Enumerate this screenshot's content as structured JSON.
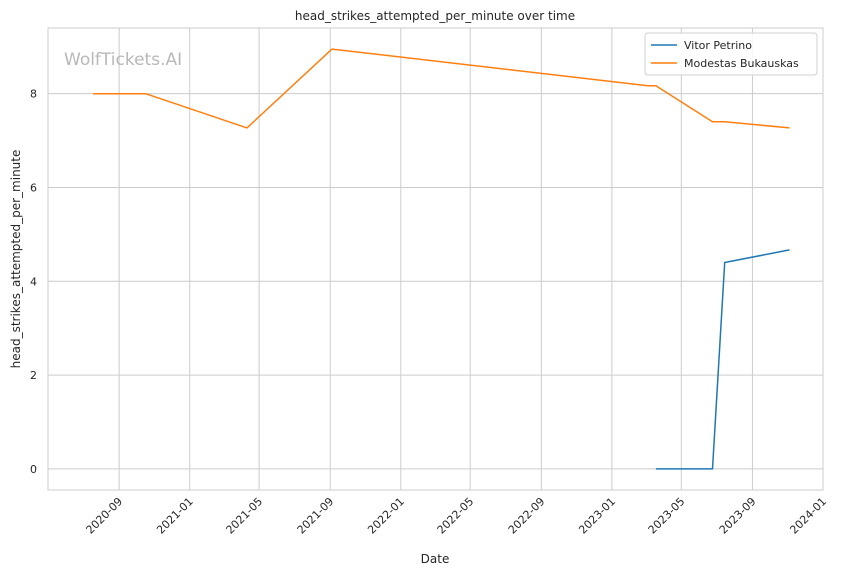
{
  "chart_data": {
    "type": "line",
    "title": "head_strikes_attempted_per_minute over time",
    "xlabel": "Date",
    "ylabel": "head_strikes_attempted_per_minute",
    "watermark": "WolfTickets.AI",
    "x_tick_labels": [
      "2020-09",
      "2021-01",
      "2021-05",
      "2021-09",
      "2022-01",
      "2022-05",
      "2022-09",
      "2023-01",
      "2023-05",
      "2023-09",
      "2024-01"
    ],
    "x_ticks": [
      "2020-09-01",
      "2021-01-01",
      "2021-05-01",
      "2021-09-01",
      "2022-01-01",
      "2022-05-01",
      "2022-09-01",
      "2023-01-01",
      "2023-05-01",
      "2023-09-01",
      "2024-01-01"
    ],
    "y_ticks": [
      0,
      2,
      4,
      6,
      8
    ],
    "xlim": [
      "2020-05-01",
      "2024-01-01"
    ],
    "ylim": [
      -0.45,
      9.4
    ],
    "grid": true,
    "legend_position": "top-right",
    "series": [
      {
        "name": "Vitor Petrino",
        "color": "#1f77b4",
        "points": [
          {
            "x": "2023-03-18",
            "y": 0.0
          },
          {
            "x": "2023-06-24",
            "y": 0.0
          },
          {
            "x": "2023-07-15",
            "y": 4.4
          },
          {
            "x": "2023-11-04",
            "y": 4.67
          }
        ]
      },
      {
        "name": "Modestas Bukauskas",
        "color": "#ff7f0e",
        "points": [
          {
            "x": "2020-07-18",
            "y": 8.0
          },
          {
            "x": "2020-10-17",
            "y": 8.0
          },
          {
            "x": "2021-04-10",
            "y": 7.27
          },
          {
            "x": "2021-09-04",
            "y": 8.95
          },
          {
            "x": "2023-03-04",
            "y": 8.17
          },
          {
            "x": "2023-03-18",
            "y": 8.17
          },
          {
            "x": "2023-06-24",
            "y": 7.4
          },
          {
            "x": "2023-07-15",
            "y": 7.4
          },
          {
            "x": "2023-11-04",
            "y": 7.27
          }
        ]
      }
    ]
  }
}
